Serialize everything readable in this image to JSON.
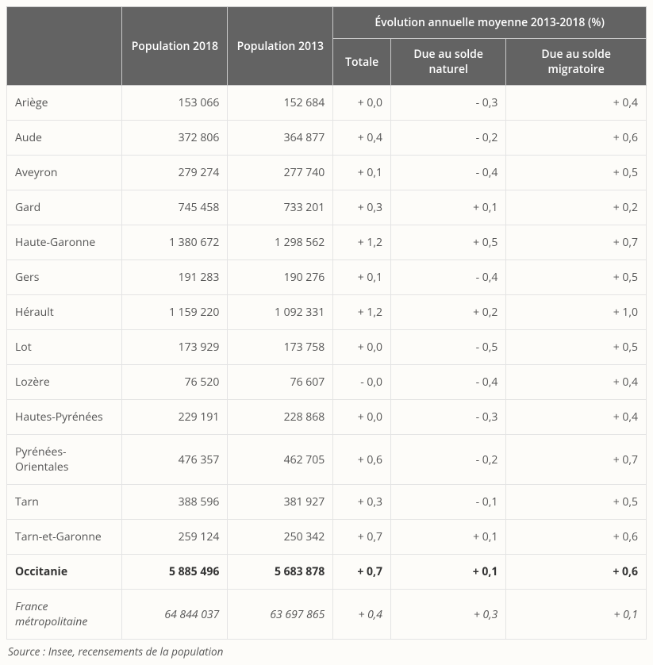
{
  "table": {
    "header": {
      "pop2018": "Population 2018",
      "pop2013": "Population 2013",
      "evol_group": "Évolution annuelle moyenne 2013-2018 (%)",
      "totale": "Totale",
      "naturel": "Due au solde naturel",
      "migratoire": "Due au solde migratoire"
    },
    "rows": [
      {
        "label": "Ariège",
        "pop2018": "153 066",
        "pop2013": "152 684",
        "totale": "+ 0,0",
        "naturel": "- 0,3",
        "migratoire": "+ 0,4",
        "style": "normal"
      },
      {
        "label": "Aude",
        "pop2018": "372 806",
        "pop2013": "364 877",
        "totale": "+ 0,4",
        "naturel": "- 0,2",
        "migratoire": "+ 0,6",
        "style": "normal"
      },
      {
        "label": "Aveyron",
        "pop2018": "279 274",
        "pop2013": "277 740",
        "totale": "+ 0,1",
        "naturel": "- 0,4",
        "migratoire": "+ 0,5",
        "style": "normal"
      },
      {
        "label": "Gard",
        "pop2018": "745 458",
        "pop2013": "733 201",
        "totale": "+ 0,3",
        "naturel": "+ 0,1",
        "migratoire": "+ 0,2",
        "style": "normal"
      },
      {
        "label": "Haute-Garonne",
        "pop2018": "1 380 672",
        "pop2013": "1 298 562",
        "totale": "+ 1,2",
        "naturel": "+ 0,5",
        "migratoire": "+ 0,7",
        "style": "normal"
      },
      {
        "label": "Gers",
        "pop2018": "191 283",
        "pop2013": "190 276",
        "totale": "+ 0,1",
        "naturel": "- 0,4",
        "migratoire": "+ 0,5",
        "style": "normal"
      },
      {
        "label": "Hérault",
        "pop2018": "1 159 220",
        "pop2013": "1 092 331",
        "totale": "+ 1,2",
        "naturel": "+ 0,2",
        "migratoire": "+ 1,0",
        "style": "normal"
      },
      {
        "label": "Lot",
        "pop2018": "173 929",
        "pop2013": "173 758",
        "totale": "+ 0,0",
        "naturel": "- 0,5",
        "migratoire": "+ 0,5",
        "style": "normal"
      },
      {
        "label": "Lozère",
        "pop2018": "76 520",
        "pop2013": "76 607",
        "totale": "- 0,0",
        "naturel": "- 0,4",
        "migratoire": "+ 0,4",
        "style": "normal"
      },
      {
        "label": "Hautes-Pyrénées",
        "pop2018": "229 191",
        "pop2013": "228 868",
        "totale": "+ 0,0",
        "naturel": "- 0,3",
        "migratoire": "+ 0,4",
        "style": "normal"
      },
      {
        "label": "Pyrénées-Orientales",
        "pop2018": "476 357",
        "pop2013": "462 705",
        "totale": "+ 0,6",
        "naturel": "- 0,2",
        "migratoire": "+ 0,7",
        "style": "normal"
      },
      {
        "label": "Tarn",
        "pop2018": "388 596",
        "pop2013": "381 927",
        "totale": "+ 0,3",
        "naturel": "- 0,1",
        "migratoire": "+ 0,5",
        "style": "normal"
      },
      {
        "label": "Tarn-et-Garonne",
        "pop2018": "259 124",
        "pop2013": "250 342",
        "totale": "+ 0,7",
        "naturel": "+ 0,1",
        "migratoire": "+ 0,6",
        "style": "normal"
      },
      {
        "label": "Occitanie",
        "pop2018": "5 885 496",
        "pop2013": "5 683 878",
        "totale": "+ 0,7",
        "naturel": "+ 0,1",
        "migratoire": "+ 0,6",
        "style": "bold"
      },
      {
        "label": "France métropolitaine",
        "pop2018": "64 844 037",
        "pop2013": "63 697 865",
        "totale": "+ 0,4",
        "naturel": "+ 0,3",
        "migratoire": "+ 0,1",
        "style": "italic"
      }
    ]
  },
  "source": "Source : Insee, recensements de la population",
  "style": {
    "header_bg": "#636363",
    "header_fg": "#ffffff",
    "body_fg": "#555555",
    "border_header": "#c9c9c9",
    "border_body": "#e4e4e4",
    "background": "#fdfcf9",
    "font_size_body": 14,
    "font_size_source": 13.5
  }
}
